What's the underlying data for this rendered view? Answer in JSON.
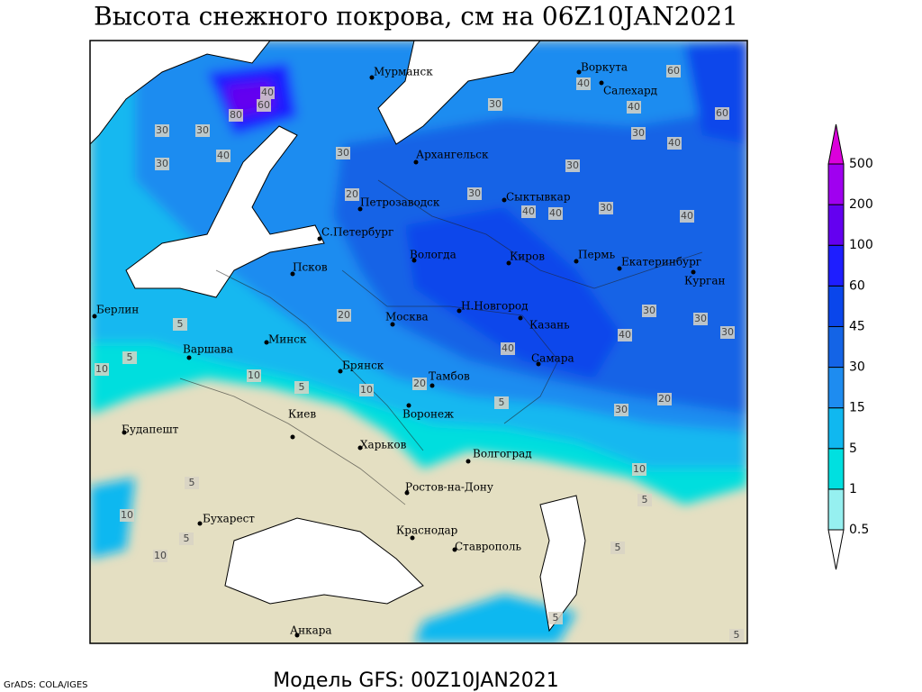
{
  "title": "Высота снежного покрова, см на 06Z10JAN2021",
  "footer": "Модель GFS: 00Z10JAN2021",
  "credit": "GrADS: COLA/IGES",
  "cities": [
    "Мурманск",
    "Воркута",
    "Салехард",
    "Архангельск",
    "Сыктывкар",
    "Петрозаводск",
    "С.Петербург",
    "Вологда",
    "Киров",
    "Пермь",
    "Екатеринбург",
    "Курган",
    "Псков",
    "Берлин",
    "Москва",
    "Н.Новгород",
    "Казань",
    "Минск",
    "Варшава",
    "Брянск",
    "Самара",
    "Тамбов",
    "Воронеж",
    "Киев",
    "Будапешт",
    "Харьков",
    "Волгоград",
    "Ростов-на-Дону",
    "Бухарест",
    "Краснодар",
    "Ставрополь",
    "Анкара"
  ],
  "contour_labels": [
    40,
    60,
    80,
    30,
    30,
    40,
    30,
    30,
    40,
    60,
    40,
    60,
    30,
    40,
    30,
    30,
    40,
    40,
    30,
    40,
    30,
    20,
    20,
    5,
    5,
    10,
    10,
    30,
    30,
    40,
    30,
    40,
    20,
    30,
    20,
    5,
    10,
    5,
    10,
    5,
    5,
    5,
    10,
    5,
    10,
    5,
    5
  ],
  "colorbar": {
    "levels": [
      0.5,
      1,
      5,
      15,
      30,
      45,
      60,
      100,
      200,
      500
    ],
    "colors": [
      "#ffffff",
      "#96f0f0",
      "#00e0e0",
      "#10b8f0",
      "#1e8cf0",
      "#1464e6",
      "#0a46eb",
      "#1e1eff",
      "#6400f0",
      "#a000f0",
      "#dc00dc"
    ]
  }
}
